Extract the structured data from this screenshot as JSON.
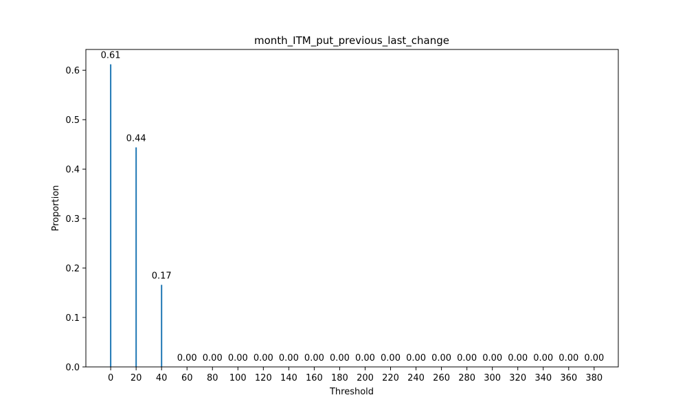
{
  "chart_data": {
    "type": "bar",
    "title": "month_ITM_put_previous_last_change",
    "xlabel": "Threshold",
    "ylabel": "Proportion",
    "x": [
      0,
      20,
      40,
      60,
      80,
      100,
      120,
      140,
      160,
      180,
      200,
      220,
      240,
      260,
      280,
      300,
      320,
      340,
      360,
      380
    ],
    "values": [
      0.612,
      0.444,
      0.166,
      0,
      0,
      0,
      0,
      0,
      0,
      0,
      0,
      0,
      0,
      0,
      0,
      0,
      0,
      0,
      0,
      0
    ],
    "value_labels": [
      "0.61",
      "0.44",
      "0.17",
      "0.00",
      "0.00",
      "0.00",
      "0.00",
      "0.00",
      "0.00",
      "0.00",
      "0.00",
      "0.00",
      "0.00",
      "0.00",
      "0.00",
      "0.00",
      "0.00",
      "0.00",
      "0.00",
      "0.00"
    ],
    "xticks": [
      "0",
      "20",
      "40",
      "60",
      "80",
      "100",
      "120",
      "140",
      "160",
      "180",
      "200",
      "220",
      "240",
      "260",
      "280",
      "300",
      "320",
      "340",
      "360",
      "380"
    ],
    "yticks": [
      "0.0",
      "0.1",
      "0.2",
      "0.3",
      "0.4",
      "0.5",
      "0.6"
    ],
    "ytick_values": [
      0,
      0.1,
      0.2,
      0.3,
      0.4,
      0.5,
      0.6
    ],
    "xlim": [
      -19.5,
      399
    ],
    "ylim": [
      0,
      0.642
    ],
    "grid": false,
    "legend": "none",
    "bar_color": "#1f77b4"
  }
}
